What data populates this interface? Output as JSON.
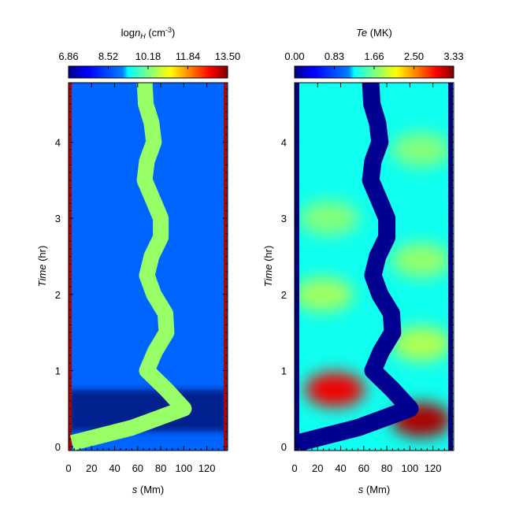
{
  "chart_data": [
    {
      "type": "heatmap",
      "title_prefix": "log",
      "title_sub": "n",
      "title_unit": "(cm",
      "title_sup": "-3",
      "title_close": ")",
      "colorbar_ticks": [
        "6.86",
        "8.52",
        "10.18",
        "11.84",
        "13.50"
      ],
      "crange": [
        6.86,
        13.5
      ],
      "xlabel_var": "s",
      "xlabel_unit": "(Mm)",
      "ylabel": "Time",
      "ylabel_unit": "(hr)",
      "xlim": [
        0,
        138
      ],
      "ylim": [
        -0.05,
        4.78
      ],
      "xticks": [
        0,
        20,
        40,
        60,
        80,
        100,
        120
      ],
      "xtick_labels": [
        "0",
        "20",
        "40",
        "60",
        "80",
        "100",
        "120"
      ],
      "yticks": [
        0,
        1,
        2,
        3,
        4
      ],
      "ytick_labels": [
        "0",
        "1",
        "2",
        "3",
        "4"
      ],
      "colormap": "jet",
      "background_level": 8.8,
      "feature_level": 10.4,
      "footpoint_level": 13.2,
      "path_s": [
        {
          "t": 0.05,
          "s": 3
        },
        {
          "t": 0.25,
          "s": 55
        },
        {
          "t": 0.5,
          "s": 100
        },
        {
          "t": 0.75,
          "s": 85
        },
        {
          "t": 1.0,
          "s": 68
        },
        {
          "t": 1.25,
          "s": 75
        },
        {
          "t": 1.5,
          "s": 85
        },
        {
          "t": 1.75,
          "s": 84
        },
        {
          "t": 2.0,
          "s": 74
        },
        {
          "t": 2.25,
          "s": 68
        },
        {
          "t": 2.5,
          "s": 72
        },
        {
          "t": 2.75,
          "s": 80
        },
        {
          "t": 3.0,
          "s": 80
        },
        {
          "t": 3.25,
          "s": 73
        },
        {
          "t": 3.5,
          "s": 66
        },
        {
          "t": 3.75,
          "s": 68
        },
        {
          "t": 4.0,
          "s": 74
        },
        {
          "t": 4.25,
          "s": 72
        },
        {
          "t": 4.5,
          "s": 67
        },
        {
          "t": 4.78,
          "s": 66
        }
      ]
    },
    {
      "type": "heatmap",
      "title_italic": "Te",
      "title_unit": "(MK)",
      "colorbar_ticks": [
        "0.00",
        "0.83",
        "1.66",
        "2.50",
        "3.33"
      ],
      "crange": [
        0.0,
        3.33
      ],
      "xlabel_var": "s",
      "xlabel_unit": "(Mm)",
      "ylabel": "Time",
      "ylabel_unit": "(hr)",
      "xlim": [
        0,
        138
      ],
      "ylim": [
        -0.05,
        4.78
      ],
      "xticks": [
        0,
        20,
        40,
        60,
        80,
        100,
        120
      ],
      "xtick_labels": [
        "0",
        "20",
        "40",
        "60",
        "80",
        "100",
        "120"
      ],
      "yticks": [
        0,
        1,
        2,
        3,
        4
      ],
      "ytick_labels": [
        "0",
        "1",
        "2",
        "3",
        "4"
      ],
      "colormap": "jet",
      "background_level": 1.3,
      "feature_level": 0.05,
      "hot_spots": [
        {
          "t": 0.75,
          "s": 35,
          "value": 3.0
        },
        {
          "t": 0.35,
          "s": 110,
          "value": 3.2
        },
        {
          "t": 1.35,
          "s": 110,
          "value": 1.85
        },
        {
          "t": 2.0,
          "s": 25,
          "value": 1.8
        },
        {
          "t": 2.45,
          "s": 110,
          "value": 1.75
        },
        {
          "t": 3.0,
          "s": 30,
          "value": 1.7
        },
        {
          "t": 3.9,
          "s": 110,
          "value": 1.7
        }
      ]
    }
  ]
}
